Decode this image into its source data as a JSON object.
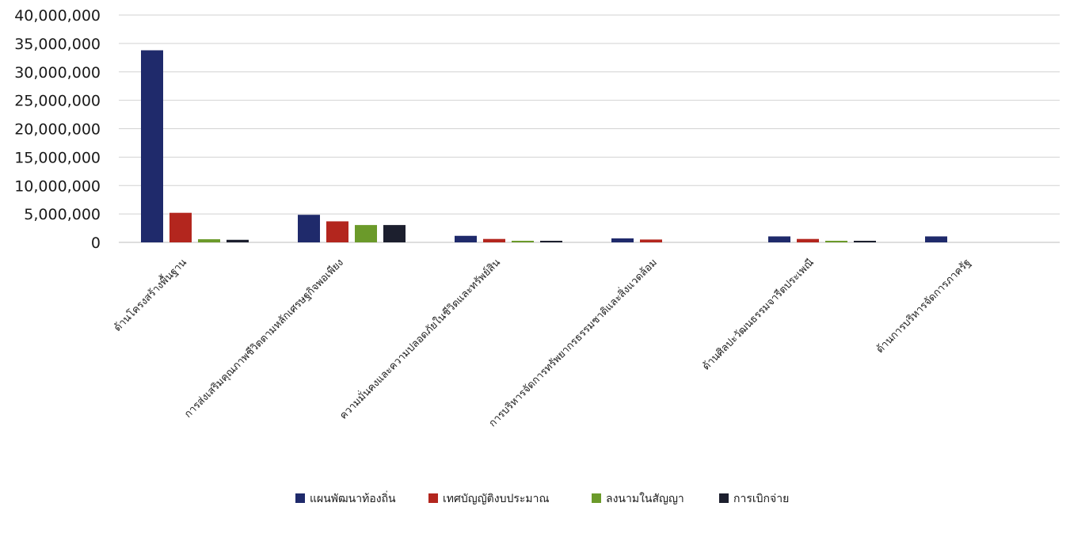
{
  "chart_data": {
    "type": "bar",
    "title": "",
    "xlabel": "",
    "ylabel": "",
    "ylim": [
      0,
      40000000
    ],
    "yticks": [
      0,
      5000000,
      10000000,
      15000000,
      20000000,
      25000000,
      30000000,
      35000000,
      40000000
    ],
    "ytick_labels": [
      "0",
      "5,000,000",
      "10,000,000",
      "15,000,000",
      "20,000,000",
      "25,000,000",
      "30,000,000",
      "35,000,000",
      "40,000,000"
    ],
    "grid": true,
    "legend_position": "bottom",
    "categories": [
      "ด้านโครงสร้างพื้นฐาน",
      "การส่งเสริมคุณภาพชีวิตตามหลักเศรษฐกิจพอเพียง",
      "ความมั่นคงและความปลอดภัยในชีวิตและทรัพย์สิน",
      "การบริหารจัดการทรัพยากรธรรมชาติและสิ่งแวดล้อม",
      "ด้านศิลปะวัฒนธรรมจารีตประเพณี",
      "ด้านการบริหารจัดการภาครัฐ"
    ],
    "series": [
      {
        "name": "แผนพัฒนาท้องถิ่น",
        "color": "#1f2a6b",
        "values": [
          33800000,
          4850000,
          1150000,
          700000,
          1050000,
          1050000
        ]
      },
      {
        "name": "เทศบัญญัติงบประมาณ",
        "color": "#b3261e",
        "values": [
          5200000,
          3700000,
          600000,
          500000,
          600000,
          0
        ]
      },
      {
        "name": "ลงนามในสัญญา",
        "color": "#6b9a2a",
        "values": [
          550000,
          3050000,
          250000,
          0,
          200000,
          0
        ]
      },
      {
        "name": "การเบิกจ่าย",
        "color": "#1c1f2e",
        "values": [
          450000,
          3050000,
          200000,
          0,
          150000,
          0
        ]
      }
    ]
  }
}
